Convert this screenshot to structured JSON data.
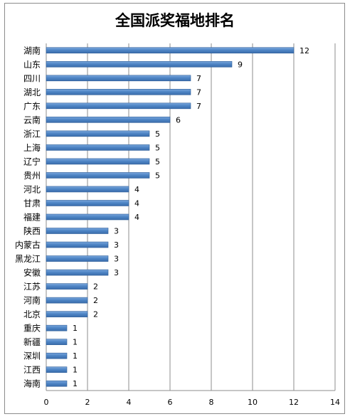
{
  "chart_data": {
    "type": "bar",
    "orientation": "horizontal",
    "title": "全国派奖福地排名",
    "xlabel": "",
    "ylabel": "",
    "categories": [
      "湖南",
      "山东",
      "四川",
      "湖北",
      "广东",
      "云南",
      "浙江",
      "上海",
      "辽宁",
      "贵州",
      "河北",
      "甘肃",
      "福建",
      "陕西",
      "内蒙古",
      "黑龙江",
      "安徽",
      "江苏",
      "河南",
      "北京",
      "重庆",
      "新疆",
      "深圳",
      "江西",
      "海南"
    ],
    "values": [
      12,
      9,
      7,
      7,
      7,
      6,
      5,
      5,
      5,
      5,
      4,
      4,
      4,
      3,
      3,
      3,
      3,
      2,
      2,
      2,
      1,
      1,
      1,
      1,
      1
    ],
    "xlim": [
      0,
      14
    ],
    "xticks": [
      0,
      2,
      4,
      6,
      8,
      10,
      12,
      14
    ],
    "grid": "vertical",
    "legend": "none",
    "bar_color": "#4f86c6",
    "bar_edge_color": "#2f5f9a",
    "grid_color": "#8c8c8c"
  }
}
